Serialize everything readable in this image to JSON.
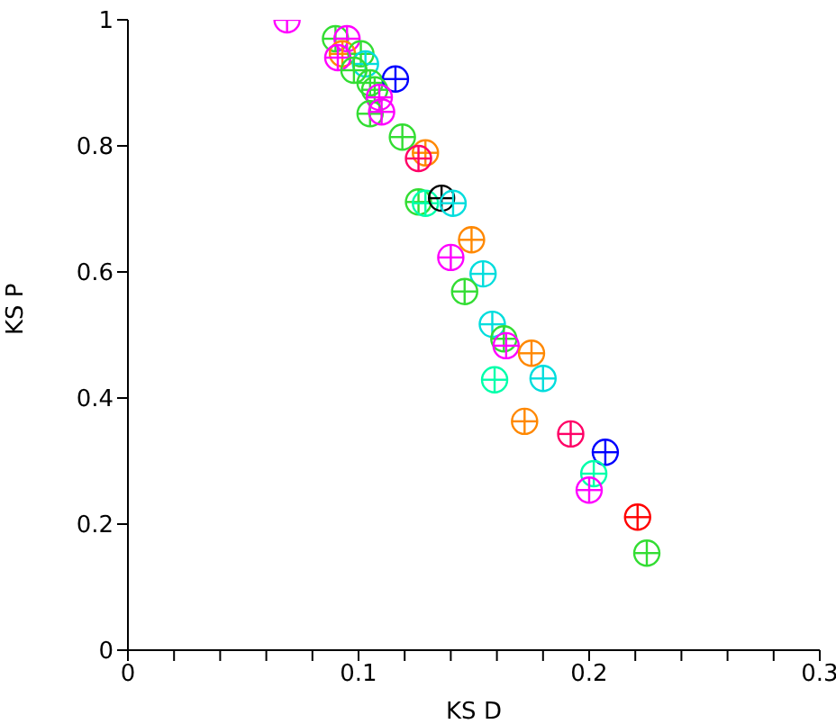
{
  "chart_data": {
    "type": "scatter",
    "xlabel": "KS D",
    "ylabel": "KS P",
    "x": [
      0.069,
      0.09,
      0.095,
      0.093,
      0.101,
      0.103,
      0.091,
      0.098,
      0.105,
      0.116,
      0.107,
      0.109,
      0.105,
      0.11,
      0.119,
      0.129,
      0.126,
      0.126,
      0.129,
      0.136,
      0.141,
      0.14,
      0.149,
      0.154,
      0.146,
      0.158,
      0.163,
      0.164,
      0.175,
      0.159,
      0.18,
      0.172,
      0.192,
      0.207,
      0.202,
      0.2,
      0.221,
      0.225
    ],
    "values": [
      1.0,
      0.97,
      0.97,
      0.946,
      0.946,
      0.93,
      0.94,
      0.92,
      0.9,
      0.906,
      0.889,
      0.877,
      0.851,
      0.854,
      0.814,
      0.789,
      0.78,
      0.711,
      0.709,
      0.717,
      0.709,
      0.623,
      0.651,
      0.597,
      0.569,
      0.517,
      0.494,
      0.483,
      0.471,
      0.429,
      0.431,
      0.363,
      0.343,
      0.314,
      0.28,
      0.254,
      0.211,
      0.154
    ],
    "colors": [
      "#ff00ff",
      "#33dd33",
      "#ff00ff",
      "#ff8800",
      "#33dd33",
      "#00dddd",
      "#ff00ff",
      "#33dd33",
      "#33dd33",
      "#0000ff",
      "#33dd33",
      "#ff00ff",
      "#33dd33",
      "#ff00ff",
      "#33dd33",
      "#ff8800",
      "#ff0066",
      "#33dd33",
      "#00ffaa",
      "#000000",
      "#00dddd",
      "#ff00ff",
      "#ff8800",
      "#00dddd",
      "#33dd33",
      "#00dddd",
      "#33dd33",
      "#ff00ff",
      "#ff8800",
      "#00ffaa",
      "#00dddd",
      "#ff8800",
      "#ff0066",
      "#0000ff",
      "#00ffaa",
      "#ff00ff",
      "#ff0000",
      "#33dd33"
    ],
    "marker": "circle",
    "xlim": [
      0,
      0.3
    ],
    "xticks": [
      0,
      {
        "value": 0.02,
        "label": null
      },
      {
        "value": 0.04,
        "label": null
      },
      {
        "value": 0.06,
        "label": null
      },
      {
        "value": 0.08,
        "label": null
      },
      0.1,
      {
        "value": 0.12,
        "label": null
      },
      {
        "value": 0.14,
        "label": null
      },
      {
        "value": 0.16,
        "label": null
      },
      {
        "value": 0.18,
        "label": null
      },
      0.2,
      {
        "value": 0.22,
        "label": null
      },
      {
        "value": 0.24,
        "label": null
      },
      {
        "value": 0.26,
        "label": null
      },
      {
        "value": 0.28,
        "label": null
      },
      0.3
    ],
    "ylim": [
      0,
      1
    ],
    "yticks": [
      0,
      0.2,
      0.4,
      0.6,
      0.8,
      1
    ]
  }
}
